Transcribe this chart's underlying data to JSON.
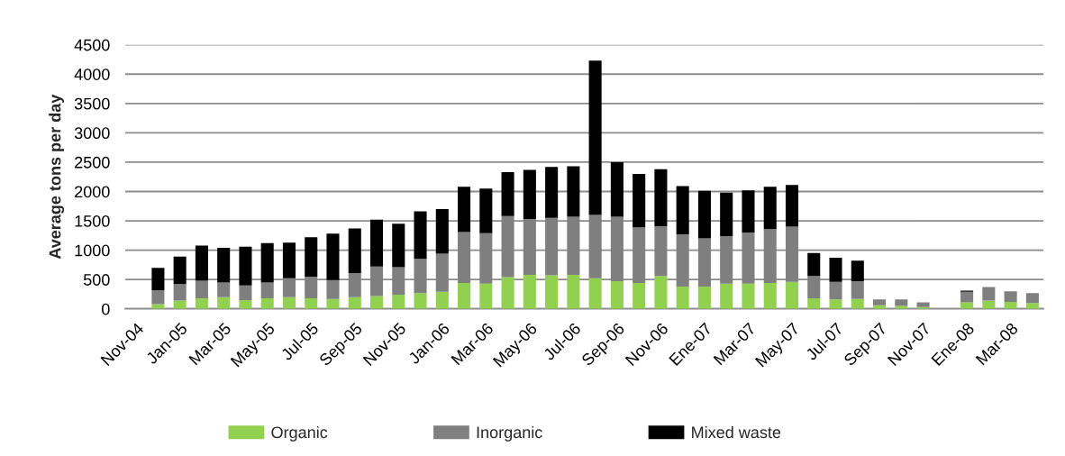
{
  "chart_data": {
    "type": "bar",
    "stacked": true,
    "ylabel": "Average tons per day",
    "categories": [
      "Nov-04",
      null,
      "Jan-05",
      null,
      "Mar-05",
      null,
      "May-05",
      null,
      "Jul-05",
      null,
      "Sep-05",
      null,
      "Nov-05",
      null,
      "Jan-06",
      null,
      "Mar-06",
      null,
      "May-06",
      null,
      "Jul-06",
      null,
      "Sep-06",
      null,
      "Nov-06",
      null,
      "Ene-07",
      null,
      "Mar-07",
      null,
      "May-07",
      null,
      "Jul-07",
      null,
      "Sep-07",
      null,
      "Nov-07",
      null,
      "Ene-08",
      null,
      "Mar-08",
      null
    ],
    "series": [
      {
        "name": "Organic",
        "color": "#92d050",
        "values": [
          null,
          80,
          140,
          180,
          200,
          150,
          180,
          200,
          180,
          170,
          200,
          220,
          240,
          270,
          290,
          440,
          430,
          540,
          580,
          570,
          580,
          520,
          470,
          440,
          560,
          380,
          380,
          430,
          430,
          440,
          460,
          180,
          160,
          170,
          60,
          50,
          30,
          null,
          110,
          140,
          120,
          100
        ]
      },
      {
        "name": "Inorganic",
        "color": "#7f7f7f",
        "values": [
          null,
          240,
          280,
          300,
          250,
          250,
          270,
          320,
          370,
          320,
          410,
          500,
          470,
          580,
          650,
          870,
          860,
          1040,
          950,
          980,
          990,
          1080,
          1100,
          950,
          850,
          890,
          820,
          810,
          870,
          920,
          940,
          380,
          300,
          300,
          100,
          110,
          80,
          null,
          180,
          230,
          180,
          170
        ]
      },
      {
        "name": "Mixed waste",
        "color": "#000000",
        "values": [
          null,
          380,
          470,
          600,
          590,
          660,
          670,
          610,
          670,
          790,
          760,
          800,
          740,
          810,
          760,
          770,
          760,
          750,
          840,
          870,
          860,
          2630,
          930,
          910,
          970,
          820,
          810,
          740,
          720,
          720,
          710,
          390,
          410,
          350,
          null,
          null,
          null,
          null,
          20,
          null,
          null,
          null
        ]
      }
    ],
    "ylim": [
      0,
      4500
    ],
    "yticks": [
      0,
      500,
      1000,
      1500,
      2000,
      2500,
      3000,
      3500,
      4000,
      4500
    ],
    "grid": "y",
    "legend": "bottom"
  }
}
